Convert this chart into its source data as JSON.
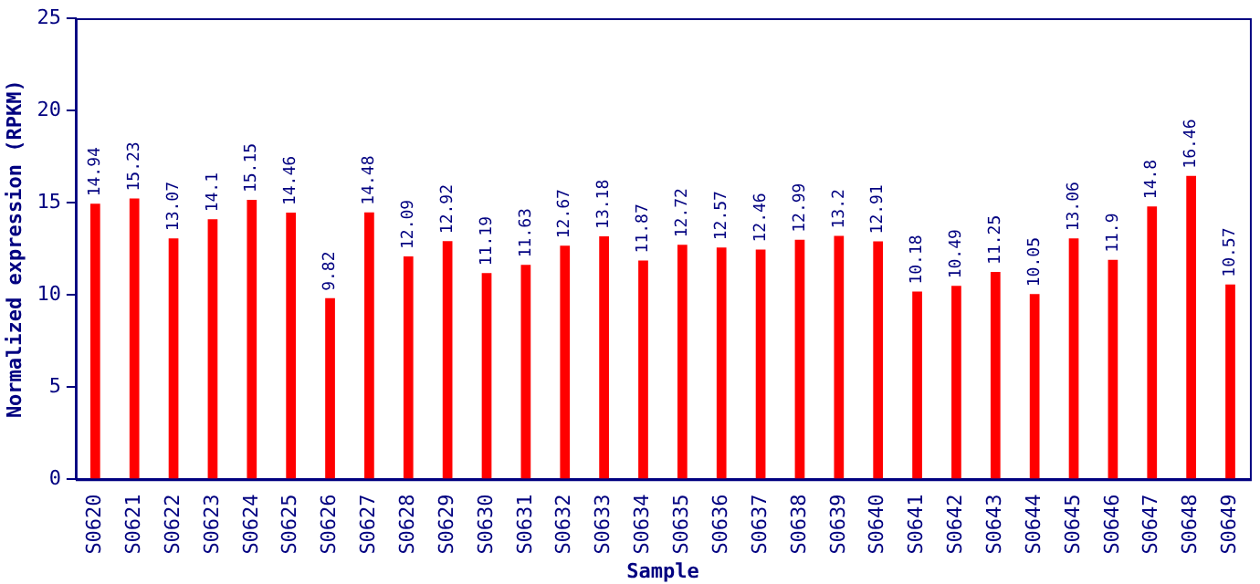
{
  "chart_data": {
    "type": "bar",
    "xlabel": "Sample",
    "ylabel": "Normalized expression (RPKM)",
    "categories": [
      "S0620",
      "S0621",
      "S0622",
      "S0623",
      "S0624",
      "S0625",
      "S0626",
      "S0627",
      "S0628",
      "S0629",
      "S0630",
      "S0631",
      "S0632",
      "S0633",
      "S0634",
      "S0635",
      "S0636",
      "S0637",
      "S0638",
      "S0639",
      "S0640",
      "S0641",
      "S0642",
      "S0643",
      "S0644",
      "S0645",
      "S0646",
      "S0647",
      "S0648",
      "S0649"
    ],
    "values": [
      14.94,
      15.23,
      13.07,
      14.1,
      15.15,
      14.46,
      9.82,
      14.48,
      12.09,
      12.92,
      11.19,
      11.63,
      12.67,
      13.18,
      11.87,
      12.72,
      12.57,
      12.46,
      12.99,
      13.2,
      12.91,
      10.18,
      10.49,
      11.25,
      10.05,
      13.06,
      11.9,
      14.8,
      16.46,
      10.57
    ],
    "color": "#ff0000",
    "ylim": [
      0,
      25
    ],
    "yticks": [
      0,
      5,
      10,
      15,
      20,
      25
    ],
    "grid": false,
    "legend": false,
    "data_labels": true
  }
}
